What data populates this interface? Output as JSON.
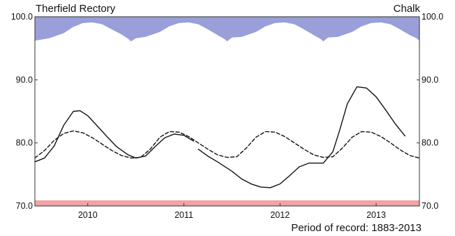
{
  "chart_data": {
    "type": "line",
    "title": "Therfield Rectory",
    "subtitle": "Chalk",
    "footnote": "Period of record: 1883-2013",
    "ylim": [
      70.0,
      100.0
    ],
    "xlim": [
      2009.45,
      2013.45
    ],
    "y_ticks": [
      {
        "value": 70,
        "label": "70.0"
      },
      {
        "value": 80,
        "label": "80.0"
      },
      {
        "value": 90,
        "label": "90.0"
      },
      {
        "value": 100,
        "label": "100.0"
      }
    ],
    "x_ticks": [
      {
        "value": 2010,
        "label": "2010"
      },
      {
        "value": 2011,
        "label": "2011"
      },
      {
        "value": 2012,
        "label": "2012"
      },
      {
        "value": 2013,
        "label": "2013"
      }
    ],
    "grid": false,
    "bands": [
      {
        "name": "upper-band",
        "color": "#9a9fda",
        "x": [
          2009.45,
          2009.6,
          2009.75,
          2009.85,
          2009.95,
          2010.05,
          2010.15,
          2010.25,
          2010.35,
          2010.42,
          2010.45,
          2010.5,
          2010.6,
          2010.75,
          2010.85,
          2010.95,
          2011.05,
          2011.15,
          2011.25,
          2011.35,
          2011.42,
          2011.45,
          2011.5,
          2011.6,
          2011.75,
          2011.85,
          2011.95,
          2012.05,
          2012.15,
          2012.25,
          2012.35,
          2012.42,
          2012.45,
          2012.5,
          2012.6,
          2012.75,
          2012.85,
          2012.95,
          2013.05,
          2013.15,
          2013.25,
          2013.35,
          2013.42,
          2013.45
        ],
        "y": [
          96.2,
          96.6,
          97.4,
          98.4,
          99.0,
          99.1,
          98.8,
          98.0,
          97.2,
          96.5,
          96.1,
          96.6,
          96.8,
          97.6,
          98.5,
          99.0,
          99.1,
          98.8,
          98.0,
          97.1,
          96.5,
          96.1,
          96.7,
          96.8,
          97.6,
          98.5,
          99.0,
          99.1,
          98.8,
          98.0,
          97.1,
          96.5,
          96.1,
          96.7,
          96.8,
          97.6,
          98.5,
          99.0,
          99.1,
          98.8,
          98.0,
          97.1,
          96.6,
          96.2
        ]
      },
      {
        "name": "lower-band",
        "color": "#f2a3a5",
        "x": [
          2009.45,
          2013.45
        ],
        "y_from": 70.0,
        "y_to": 70.9
      }
    ],
    "series": [
      {
        "style": "solid",
        "color": "#111111",
        "x": [
          2009.45,
          2009.55,
          2009.65,
          2009.75,
          2009.85,
          2009.92,
          2010.0,
          2010.08,
          2010.2,
          2010.3,
          2010.42,
          2010.5,
          2010.6,
          2010.7,
          2010.8,
          2010.9,
          2011.0,
          2011.1
        ],
        "y": [
          77.0,
          77.6,
          79.5,
          82.8,
          85.0,
          85.1,
          84.3,
          83.0,
          81.0,
          79.4,
          78.1,
          77.6,
          77.9,
          79.4,
          80.8,
          81.4,
          81.2,
          80.3
        ]
      },
      {
        "style": "solid",
        "color": "#111111",
        "x": [
          2011.15,
          2011.25,
          2011.35,
          2011.5,
          2011.6,
          2011.7,
          2011.8,
          2011.9,
          2012.0,
          2012.1,
          2012.2,
          2012.3,
          2012.45,
          2012.55,
          2012.62,
          2012.7,
          2012.8,
          2012.9,
          2013.0,
          2013.1,
          2013.2,
          2013.3
        ],
        "y": [
          79.0,
          77.9,
          77.0,
          75.5,
          74.3,
          73.5,
          73.0,
          72.9,
          73.5,
          74.8,
          76.2,
          76.8,
          76.8,
          78.6,
          82.0,
          86.2,
          88.9,
          88.7,
          87.3,
          85.2,
          83.0,
          81.1
        ]
      },
      {
        "style": "dashed",
        "color": "#111111",
        "x": [
          2009.45,
          2009.55,
          2009.65,
          2009.75,
          2009.85,
          2009.95,
          2010.05,
          2010.15,
          2010.25,
          2010.35,
          2010.45,
          2010.55,
          2010.65,
          2010.75,
          2010.85,
          2010.95,
          2011.05,
          2011.15,
          2011.25,
          2011.35,
          2011.45,
          2011.55,
          2011.65,
          2011.75,
          2011.85,
          2011.95,
          2012.05,
          2012.15,
          2012.25,
          2012.35,
          2012.45,
          2012.55,
          2012.65,
          2012.75,
          2012.85,
          2012.95,
          2013.05,
          2013.15,
          2013.25,
          2013.35,
          2013.45
        ],
        "y": [
          77.6,
          78.8,
          80.4,
          81.5,
          81.9,
          81.6,
          80.8,
          79.8,
          78.8,
          78.0,
          77.6,
          77.7,
          79.0,
          80.9,
          81.8,
          81.7,
          81.0,
          80.0,
          79.0,
          78.1,
          77.7,
          77.8,
          79.2,
          80.9,
          81.8,
          81.7,
          81.0,
          80.0,
          79.0,
          78.1,
          77.7,
          77.8,
          79.2,
          80.9,
          81.8,
          81.7,
          81.0,
          80.0,
          78.9,
          78.0,
          77.6
        ]
      }
    ]
  }
}
